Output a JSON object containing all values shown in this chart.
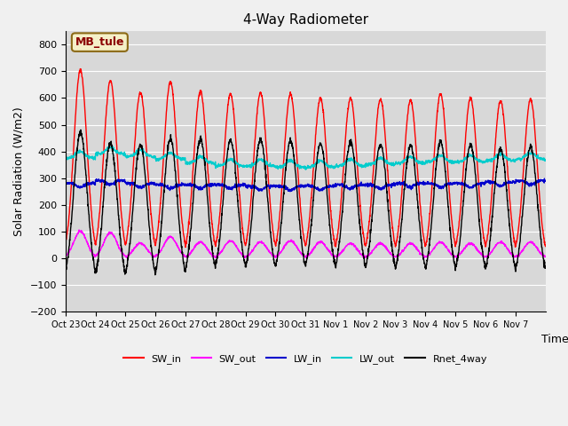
{
  "title": "4-Way Radiometer",
  "xlabel": "Time",
  "ylabel": "Solar Radiation (W/m2)",
  "ylim": [
    -200,
    850
  ],
  "yticks": [
    -200,
    -100,
    0,
    100,
    200,
    300,
    400,
    500,
    600,
    700,
    800
  ],
  "annotation_text": "MB_tule",
  "annotation_box_color": "#f5f0c8",
  "annotation_border_color": "#8B6914",
  "colors": {
    "SW_in": "#ff0000",
    "SW_out": "#ff00ff",
    "LW_in": "#0000cc",
    "LW_out": "#00cccc",
    "Rnet_4way": "#000000"
  },
  "n_days": 16,
  "x_tick_labels": [
    "Oct 23",
    "Oct 24",
    "Oct 25",
    "Oct 26",
    "Oct 27",
    "Oct 28",
    "Oct 29",
    "Oct 30",
    "Oct 31",
    "Nov 1",
    "Nov 2",
    "Nov 3",
    "Nov 4",
    "Nov 5",
    "Nov 6",
    "Nov 7"
  ],
  "SW_in_peaks": [
    705,
    665,
    620,
    660,
    625,
    615,
    620,
    615,
    600,
    600,
    595,
    590,
    615,
    600,
    590,
    595
  ],
  "SW_out_peaks": [
    100,
    95,
    55,
    80,
    60,
    65,
    60,
    65,
    60,
    55,
    55,
    55,
    60,
    55,
    60,
    60
  ],
  "LW_in_base": [
    280,
    290,
    280,
    275,
    275,
    275,
    270,
    270,
    270,
    275,
    275,
    280,
    280,
    280,
    285,
    290
  ],
  "LW_out_base": [
    375,
    390,
    380,
    370,
    355,
    345,
    345,
    340,
    340,
    345,
    350,
    355,
    360,
    360,
    365,
    370
  ],
  "Rnet_night": [
    -115,
    -110,
    -115,
    -105,
    -100,
    -95,
    -95,
    -95,
    -95,
    -100,
    -100,
    -105,
    -115,
    -100,
    -90,
    -90
  ]
}
